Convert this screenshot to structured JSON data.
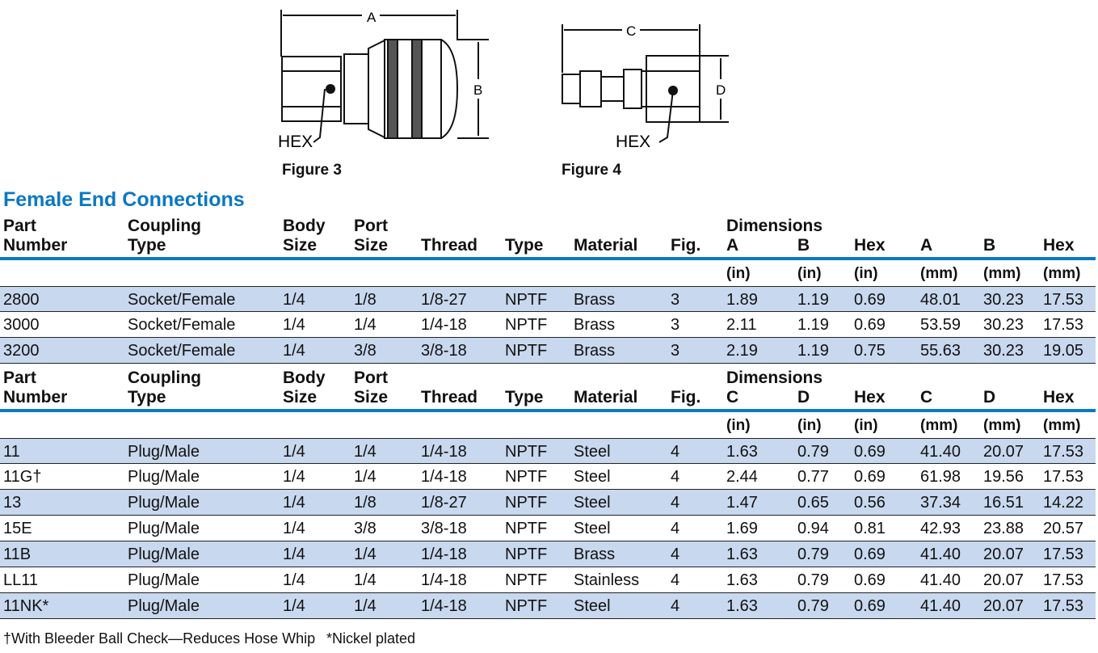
{
  "figures": [
    {
      "label": "Figure 3",
      "dims": [
        "A",
        "B"
      ],
      "hex": "HEX"
    },
    {
      "label": "Figure 4",
      "dims": [
        "C",
        "D"
      ],
      "hex": "HEX"
    }
  ],
  "section_title": "Female End Connections",
  "colors": {
    "accent": "#0a78c2",
    "row_shade": "#c8d8ee"
  },
  "tables": [
    {
      "headers": [
        "Part\nNumber",
        "Coupling\nType",
        "Body\nSize",
        "Port\nSize",
        "Thread",
        "Type",
        "Material",
        "Fig.",
        "Dimensions\nA",
        "B",
        "Hex",
        "A",
        "B",
        "Hex"
      ],
      "units": [
        "(in)",
        "(in)",
        "(in)",
        "(mm)",
        "(mm)",
        "(mm)"
      ],
      "rows": [
        [
          "2800",
          "Socket/Female",
          "1/4",
          "1/8",
          "1/8-27",
          "NPTF",
          "Brass",
          "3",
          "1.89",
          "1.19",
          "0.69",
          "48.01",
          "30.23",
          "17.53"
        ],
        [
          "3000",
          "Socket/Female",
          "1/4",
          "1/4",
          "1/4-18",
          "NPTF",
          "Brass",
          "3",
          "2.11",
          "1.19",
          "0.69",
          "53.59",
          "30.23",
          "17.53"
        ],
        [
          "3200",
          "Socket/Female",
          "1/4",
          "3/8",
          "3/8-18",
          "NPTF",
          "Brass",
          "3",
          "2.19",
          "1.19",
          "0.75",
          "55.63",
          "30.23",
          "19.05"
        ]
      ]
    },
    {
      "headers": [
        "Part\nNumber",
        "Coupling\nType",
        "Body\nSize",
        "Port\nSize",
        "Thread",
        "Type",
        "Material",
        "Fig.",
        "Dimensions\nC",
        "D",
        "Hex",
        "C",
        "D",
        "Hex"
      ],
      "units": [
        "(in)",
        "(in)",
        "(in)",
        "(mm)",
        "(mm)",
        "(mm)"
      ],
      "rows": [
        [
          "11",
          "Plug/Male",
          "1/4",
          "1/4",
          "1/4-18",
          "NPTF",
          "Steel",
          "4",
          "1.63",
          "0.79",
          "0.69",
          "41.40",
          "20.07",
          "17.53"
        ],
        [
          "11G†",
          "Plug/Male",
          "1/4",
          "1/4",
          "1/4-18",
          "NPTF",
          "Steel",
          "4",
          "2.44",
          "0.77",
          "0.69",
          "61.98",
          "19.56",
          "17.53"
        ],
        [
          "13",
          "Plug/Male",
          "1/4",
          "1/8",
          "1/8-27",
          "NPTF",
          "Steel",
          "4",
          "1.47",
          "0.65",
          "0.56",
          "37.34",
          "16.51",
          "14.22"
        ],
        [
          "15E",
          "Plug/Male",
          "1/4",
          "3/8",
          "3/8-18",
          "NPTF",
          "Steel",
          "4",
          "1.69",
          "0.94",
          "0.81",
          "42.93",
          "23.88",
          "20.57"
        ],
        [
          "11B",
          "Plug/Male",
          "1/4",
          "1/4",
          "1/4-18",
          "NPTF",
          "Brass",
          "4",
          "1.63",
          "0.79",
          "0.69",
          "41.40",
          "20.07",
          "17.53"
        ],
        [
          "LL11",
          "Plug/Male",
          "1/4",
          "1/4",
          "1/4-18",
          "NPTF",
          "Stainless",
          "4",
          "1.63",
          "0.79",
          "0.69",
          "41.40",
          "20.07",
          "17.53"
        ],
        [
          "11NK*",
          "Plug/Male",
          "1/4",
          "1/4",
          "1/4-18",
          "NPTF",
          "Steel",
          "4",
          "1.63",
          "0.79",
          "0.69",
          "41.40",
          "20.07",
          "17.53"
        ]
      ]
    }
  ],
  "footnotes": [
    "†With Bleeder Ball Check—Reduces Hose Whip",
    "*Nickel plated"
  ]
}
